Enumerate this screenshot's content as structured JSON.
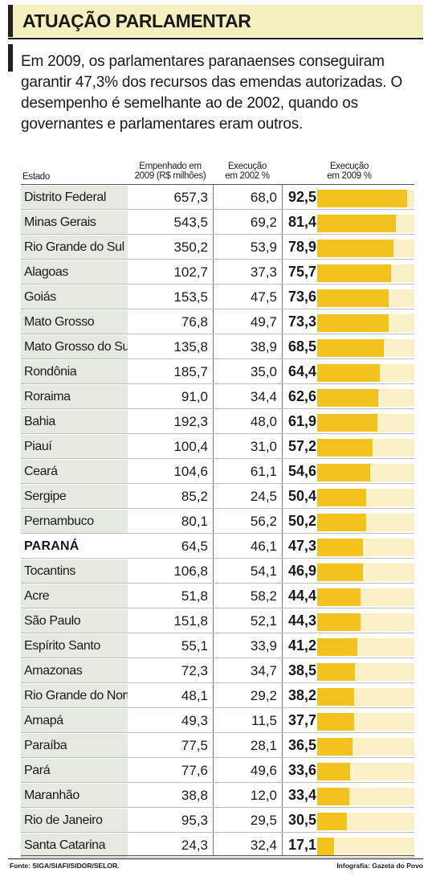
{
  "header": {
    "title": "ATUAÇÃO PARLAMENTAR"
  },
  "intro": "Em 2009, os parlamentares paranaenses conseguiram garantir 47,3% dos recursos das emendas autorizadas. O desempenho é semelhante ao de 2002, quando os governantes e parlamentares eram outros.",
  "columns": {
    "state": [
      "Estado"
    ],
    "empenhado": [
      "Empenhado em",
      "2009 (R$ milhões)"
    ],
    "exec2002": [
      "Execução",
      "em 2002 %"
    ],
    "exec2009": [
      "Execução",
      "em 2009 %"
    ]
  },
  "colors": {
    "bar": "#f2c31f",
    "bar_track": "#fbf0c6",
    "state_cell": "#e4eae0",
    "header_bg": "#f4f0bf"
  },
  "chart_data": {
    "type": "table",
    "bar_column": "exec2009",
    "bar_max": 100,
    "rows": [
      {
        "state": "Distrito Federal",
        "empenhado": "657,3",
        "exec2002": "68,0",
        "exec2009": "92,5",
        "value": 92.5
      },
      {
        "state": "Minas Gerais",
        "empenhado": "543,5",
        "exec2002": "69,2",
        "exec2009": "81,4",
        "value": 81.4
      },
      {
        "state": "Rio Grande do Sul",
        "empenhado": "350,2",
        "exec2002": "53,9",
        "exec2009": "78,9",
        "value": 78.9
      },
      {
        "state": "Alagoas",
        "empenhado": "102,7",
        "exec2002": "37,3",
        "exec2009": "75,7",
        "value": 75.7
      },
      {
        "state": "Goiás",
        "empenhado": "153,5",
        "exec2002": "47,5",
        "exec2009": "73,6",
        "value": 73.6
      },
      {
        "state": "Mato Grosso",
        "empenhado": "76,8",
        "exec2002": "49,7",
        "exec2009": "73,3",
        "value": 73.3
      },
      {
        "state": "Mato Grosso do Sul",
        "empenhado": "135,8",
        "exec2002": "38,9",
        "exec2009": "68,5",
        "value": 68.5
      },
      {
        "state": "Rondônia",
        "empenhado": "185,7",
        "exec2002": "35,0",
        "exec2009": "64,4",
        "value": 64.4
      },
      {
        "state": "Roraima",
        "empenhado": "91,0",
        "exec2002": "34,4",
        "exec2009": "62,6",
        "value": 62.6
      },
      {
        "state": "Bahia",
        "empenhado": "192,3",
        "exec2002": "48,0",
        "exec2009": "61,9",
        "value": 61.9
      },
      {
        "state": "Piauí",
        "empenhado": "100,4",
        "exec2002": "31,0",
        "exec2009": "57,2",
        "value": 57.2
      },
      {
        "state": "Ceará",
        "empenhado": "104,6",
        "exec2002": "61,1",
        "exec2009": "54,6",
        "value": 54.6
      },
      {
        "state": "Sergipe",
        "empenhado": "85,2",
        "exec2002": "24,5",
        "exec2009": "50,4",
        "value": 50.4
      },
      {
        "state": "Pernambuco",
        "empenhado": "80,1",
        "exec2002": "56,2",
        "exec2009": "50,2",
        "value": 50.2
      },
      {
        "state": "PARANÁ",
        "empenhado": "64,5",
        "exec2002": "46,1",
        "exec2009": "47,3",
        "value": 47.3,
        "highlight": true
      },
      {
        "state": "Tocantins",
        "empenhado": "106,8",
        "exec2002": "54,1",
        "exec2009": "46,9",
        "value": 46.9
      },
      {
        "state": "Acre",
        "empenhado": "51,8",
        "exec2002": "58,2",
        "exec2009": "44,4",
        "value": 44.4
      },
      {
        "state": "São Paulo",
        "empenhado": "151,8",
        "exec2002": "52,1",
        "exec2009": "44,3",
        "value": 44.3
      },
      {
        "state": "Espírito Santo",
        "empenhado": "55,1",
        "exec2002": "33,9",
        "exec2009": "41,2",
        "value": 41.2
      },
      {
        "state": "Amazonas",
        "empenhado": "72,3",
        "exec2002": "34,7",
        "exec2009": "38,5",
        "value": 38.5
      },
      {
        "state": "Rio Grande do Norte",
        "empenhado": "48,1",
        "exec2002": "29,2",
        "exec2009": "38,2",
        "value": 38.2
      },
      {
        "state": "Amapá",
        "empenhado": "49,3",
        "exec2002": "11,5",
        "exec2009": "37,7",
        "value": 37.7
      },
      {
        "state": "Paraíba",
        "empenhado": "77,5",
        "exec2002": "28,1",
        "exec2009": "36,5",
        "value": 36.5
      },
      {
        "state": "Pará",
        "empenhado": "77,6",
        "exec2002": "49,6",
        "exec2009": "33,6",
        "value": 33.6
      },
      {
        "state": "Maranhão",
        "empenhado": "38,8",
        "exec2002": "12,0",
        "exec2009": "33,4",
        "value": 33.4
      },
      {
        "state": "Rio de Janeiro",
        "empenhado": "95,3",
        "exec2002": "29,5",
        "exec2009": "30,5",
        "value": 30.5
      },
      {
        "state": "Santa Catarina",
        "empenhado": "24,3",
        "exec2002": "32,4",
        "exec2009": "17,1",
        "value": 17.1
      }
    ]
  },
  "footer": {
    "source": "Fonte: SIGA/SIAFI/SIDOR/SELOR.",
    "credit": "Infografia: Gazeta do Povo"
  }
}
